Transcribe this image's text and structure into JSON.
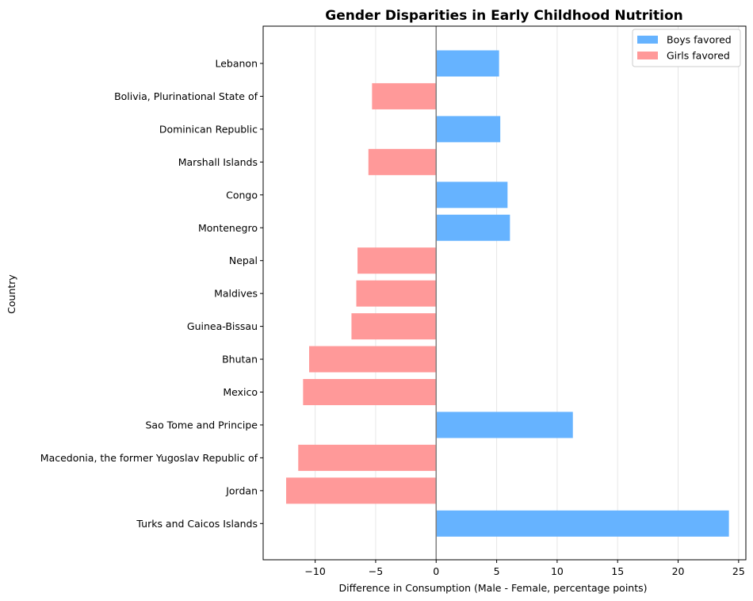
{
  "chart_data": {
    "type": "bar",
    "orientation": "horizontal",
    "title": "Gender Disparities in Early Childhood Nutrition",
    "xlabel": "Difference in Consumption (Male - Female, percentage points)",
    "ylabel": "Country",
    "xlim": [
      -14.3,
      25.6
    ],
    "xticks": [
      -10,
      -5,
      0,
      5,
      10,
      15,
      20,
      25
    ],
    "xtick_labels": [
      "−10",
      "−5",
      "0",
      "5",
      "10",
      "15",
      "20",
      "25"
    ],
    "grid": "vertical",
    "legend_position": "top-right",
    "categories": [
      "Lebanon",
      "Bolivia, Plurinational State of",
      "Dominican Republic",
      "Marshall Islands",
      "Congo",
      "Montenegro",
      "Nepal",
      "Maldives",
      "Guinea-Bissau",
      "Bhutan",
      "Mexico",
      "Sao Tome and Principe",
      "Macedonia, the former Yugoslav Republic of",
      "Jordan",
      "Turks and Caicos Islands"
    ],
    "values": [
      5.2,
      -5.3,
      5.3,
      -5.6,
      5.9,
      6.1,
      -6.5,
      -6.6,
      -7.0,
      -10.5,
      -11.0,
      11.3,
      -11.4,
      -12.4,
      24.2
    ],
    "legend": [
      {
        "label": "Boys favored",
        "color": "#66b3ff"
      },
      {
        "label": "Girls favored",
        "color": "#ff9999"
      }
    ]
  },
  "colors": {
    "positive": "#66b3ff",
    "negative": "#ff9999",
    "zero_line": "#808080",
    "grid": "#e6e6e6"
  }
}
